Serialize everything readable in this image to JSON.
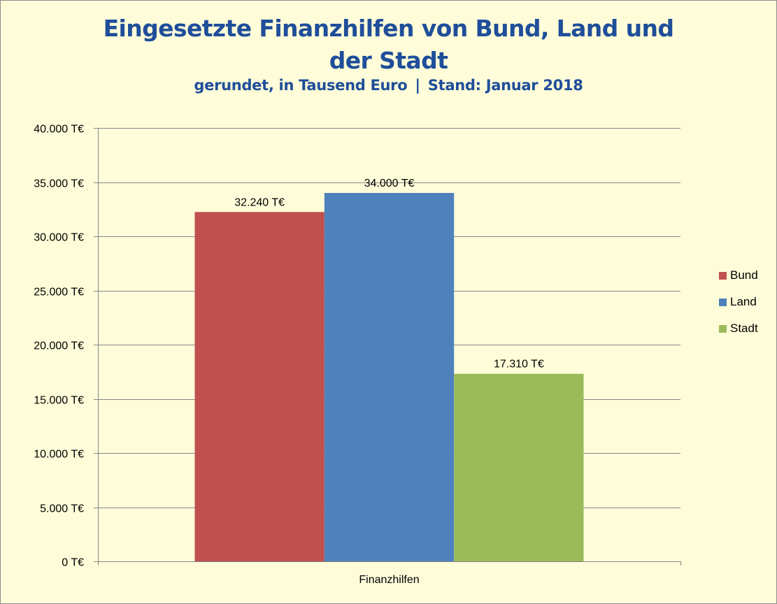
{
  "chart_data": {
    "type": "bar",
    "title": "Eingesetzte Finanzhilfen von Bund, Land und der Stadt",
    "subtitle": "gerundet, in Tausend Euro | Stand: Januar 2018",
    "categories": [
      "Finanzhilfen"
    ],
    "series": [
      {
        "name": "Bund",
        "values": [
          32240
        ],
        "label": "32.240 T€",
        "color": "#C0504D"
      },
      {
        "name": "Land",
        "values": [
          34000
        ],
        "label": "34.000 T€",
        "color": "#4F81BD"
      },
      {
        "name": "Stadt",
        "values": [
          17310
        ],
        "label": "17.310 T€",
        "color": "#9BBB59"
      }
    ],
    "ylim": [
      0,
      40000
    ],
    "yticks": [
      0,
      5000,
      10000,
      15000,
      20000,
      25000,
      30000,
      35000,
      40000
    ],
    "ytick_labels": [
      "0 T€",
      "5.000 T€",
      "10.000 T€",
      "15.000 T€",
      "20.000 T€",
      "25.000 T€",
      "30.000 T€",
      "35.000 T€",
      "40.000 T€"
    ],
    "xlabel": "",
    "ylabel": "",
    "grid": true,
    "legend": "right",
    "background": "#FFFDD9",
    "title_color": "#1F4E9A",
    "grid_color": "#868686"
  }
}
